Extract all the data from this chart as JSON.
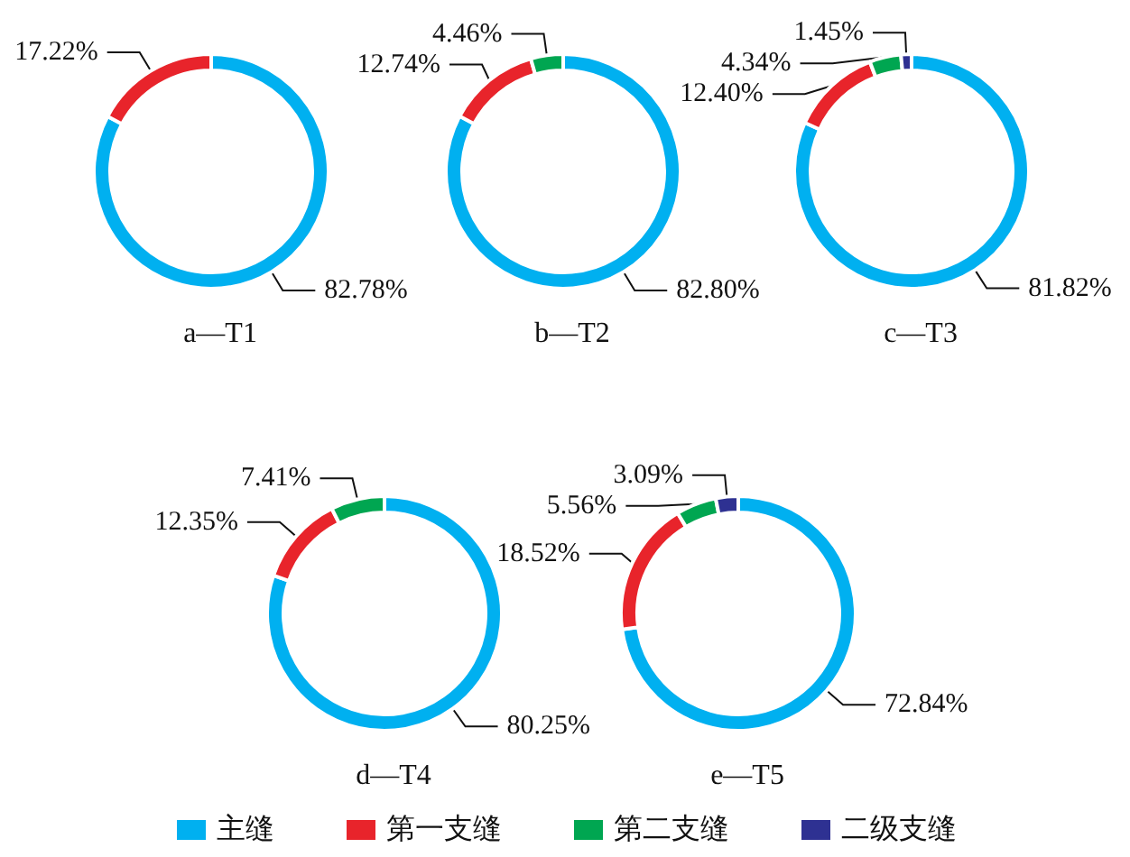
{
  "chart_data": [
    {
      "type": "donut",
      "title": "a—T1",
      "categories": [
        null,
        null
      ],
      "values": [
        82.78,
        17.22
      ],
      "value_labels": [
        "82.78%",
        "17.22%"
      ],
      "colors": [
        "#00b0f0",
        "#e8242b"
      ]
    },
    {
      "type": "donut",
      "title": "b—T2",
      "categories": [
        null,
        null,
        null
      ],
      "values": [
        82.8,
        12.74,
        4.46
      ],
      "value_labels": [
        "82.80%",
        "12.74%",
        "4.46%"
      ],
      "colors": [
        "#00b0f0",
        "#e8242b",
        "#00a651"
      ]
    },
    {
      "type": "donut",
      "title": "c—T3",
      "categories": [
        null,
        null,
        null,
        null
      ],
      "values": [
        81.82,
        12.4,
        4.34,
        1.45
      ],
      "value_labels": [
        "81.82%",
        "12.40%",
        "4.34%",
        "1.45%"
      ],
      "colors": [
        "#00b0f0",
        "#e8242b",
        "#00a651",
        "#2e3192"
      ]
    },
    {
      "type": "donut",
      "title": "d—T4",
      "categories": [
        null,
        null,
        null
      ],
      "values": [
        80.25,
        12.35,
        7.41
      ],
      "value_labels": [
        "80.25%",
        "12.35%",
        "7.41%"
      ],
      "colors": [
        "#00b0f0",
        "#e8242b",
        "#00a651"
      ]
    },
    {
      "type": "donut",
      "title": "e—T5",
      "categories": [
        "主缝",
        "第一支缝",
        "第二支缝",
        "二级支缝"
      ],
      "values": [
        72.84,
        18.52,
        5.56,
        3.09
      ],
      "value_labels": [
        "72.84%",
        "18.52%",
        "5.56%",
        "3.09%"
      ],
      "colors": [
        "#00b0f0",
        "#e8242b",
        "#00a651",
        "#2e3192"
      ],
      "legend": "bottom"
    }
  ]
}
